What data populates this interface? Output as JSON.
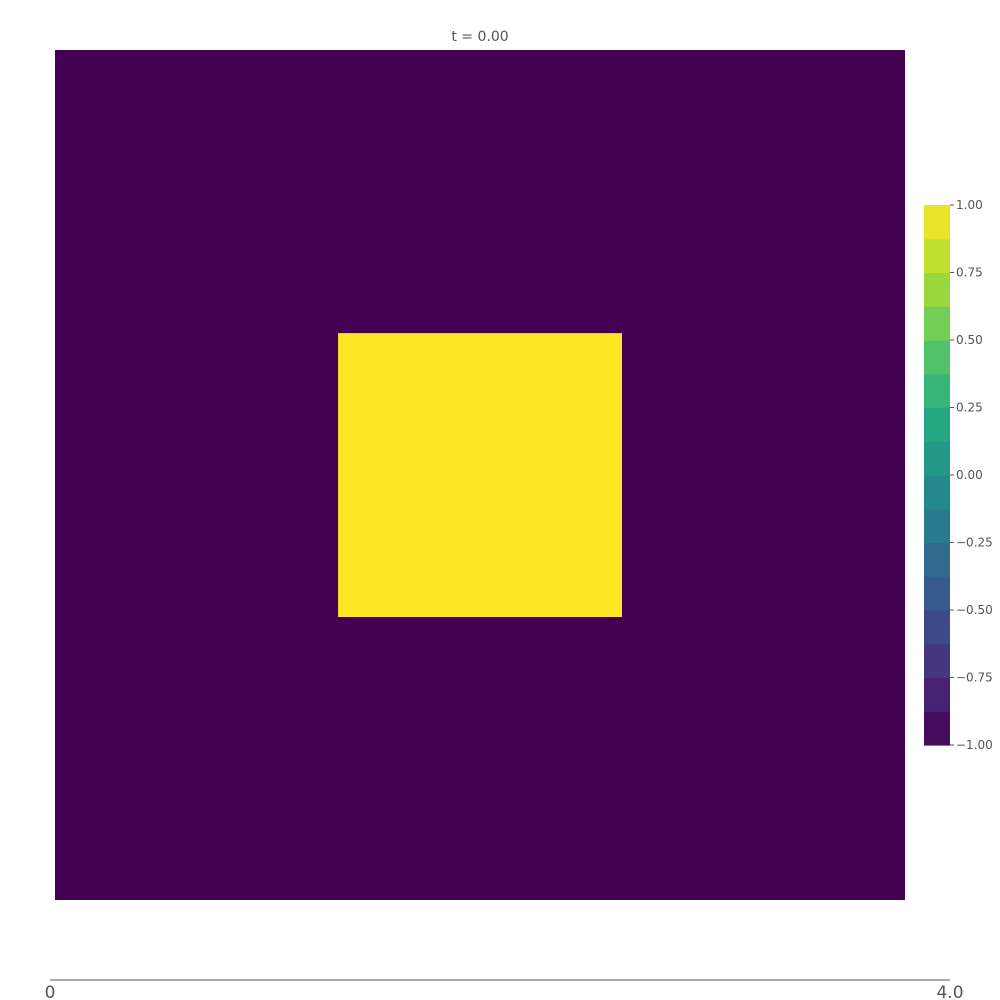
{
  "chart_data": {
    "type": "heatmap",
    "title": "t = 0.00",
    "xlabel": "",
    "ylabel": "",
    "field_background": -1.0,
    "square": {
      "value": 1.0,
      "x_range": [
        0.333,
        0.667
      ],
      "y_range": [
        0.333,
        0.667
      ],
      "note": "fractional extent of the domain"
    },
    "colorbar": {
      "min": -1.0,
      "max": 1.0,
      "levels": 16,
      "ticks": [
        1.0,
        0.75,
        0.5,
        0.25,
        0.0,
        -0.25,
        -0.5,
        -0.75,
        -1.0
      ],
      "tick_labels": [
        "1.00",
        "0.75",
        "0.50",
        "0.25",
        "0.00",
        "−0.25",
        "−0.50",
        "−0.75",
        "−1.00"
      ]
    },
    "colormap": [
      "#440154",
      "#472d7b",
      "#3b528b",
      "#2c728e",
      "#21918c",
      "#28ae80",
      "#5ec962",
      "#addc30",
      "#fde725"
    ]
  },
  "slider": {
    "min_label": "0",
    "max_label": "4.0"
  }
}
